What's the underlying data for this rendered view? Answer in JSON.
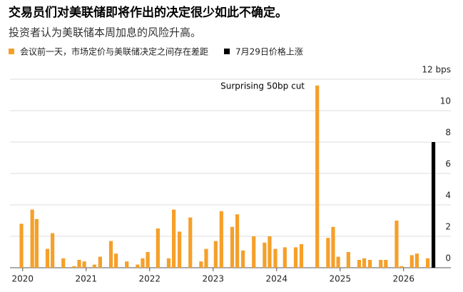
{
  "chart_data": {
    "type": "bar",
    "title": "交易员们对美联储即将作出的决定很少如此不确定。",
    "subtitle": "投资者认为美联储本周加息的风险升高。",
    "annotations": [
      "Surprising 50bp cut"
    ],
    "series": [
      {
        "name": "会议前一天，市场定价与美联储决定之间存在差距",
        "color": "#f5a02a",
        "x": [
          2019.98,
          2020.15,
          2020.22,
          2020.39,
          2020.47,
          2020.64,
          2020.81,
          2020.89,
          2020.97,
          2021.13,
          2021.22,
          2021.39,
          2021.47,
          2021.64,
          2021.81,
          2021.89,
          2021.97,
          2022.13,
          2022.3,
          2022.38,
          2022.47,
          2022.64,
          2022.81,
          2022.89,
          2023.04,
          2023.13,
          2023.3,
          2023.38,
          2023.47,
          2023.64,
          2023.81,
          2023.89,
          2023.98,
          2024.13,
          2024.3,
          2024.39,
          2024.64,
          2024.81,
          2024.89,
          2024.97,
          2025.13,
          2025.3,
          2025.38,
          2025.47,
          2025.64,
          2025.72,
          2025.89,
          2025.97,
          2026.13,
          2026.21,
          2026.38
        ],
        "values": [
          2.8,
          3.7,
          3.1,
          1.2,
          2.2,
          0.6,
          0.1,
          0.5,
          0.4,
          0.2,
          0.7,
          1.7,
          0.9,
          0.4,
          0.2,
          0.6,
          1.0,
          2.5,
          0.6,
          3.7,
          2.3,
          3.2,
          0.4,
          1.2,
          1.7,
          3.6,
          2.6,
          3.4,
          1.1,
          2.0,
          1.6,
          2.0,
          1.2,
          1.3,
          1.3,
          1.5,
          11.6,
          1.9,
          2.6,
          0.7,
          1.0,
          0.5,
          0.6,
          0.5,
          0.5,
          0.5,
          3.0,
          0.1,
          0.8,
          0.9,
          0.6
        ]
      },
      {
        "name": "7月29日价格上涨",
        "color": "#000000",
        "x": [
          2026.47
        ],
        "values": [
          8.0
        ]
      }
    ],
    "xlim": [
      2019.8,
      2026.52
    ],
    "xticks": [
      2020,
      2021,
      2022,
      2023,
      2024,
      2025,
      2026
    ],
    "ylim": [
      0,
      12
    ],
    "yticks": [
      0,
      2,
      4,
      6,
      8,
      10,
      {
        "value": 12,
        "label": "12 bps"
      }
    ],
    "grid": true
  }
}
